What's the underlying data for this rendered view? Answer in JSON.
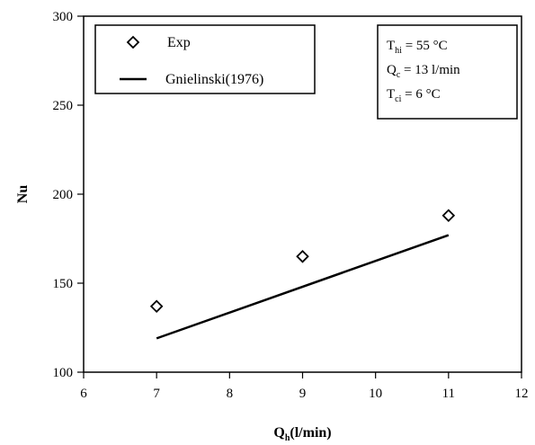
{
  "chart_data": {
    "type": "scatter",
    "xlabel": "Qh(l/min)",
    "xlabel_parts": {
      "main": "Q",
      "sub": "h",
      "rest": "(l/min)"
    },
    "ylabel": "Nu",
    "xlim": [
      6,
      12
    ],
    "ylim": [
      100,
      300
    ],
    "xticks": [
      "6",
      "7",
      "8",
      "9",
      "10",
      "11",
      "12"
    ],
    "yticks": [
      "100",
      "150",
      "200",
      "250",
      "300"
    ],
    "grid": false,
    "legend_position": "top-left",
    "series": [
      {
        "name": "Exp",
        "marker": "open-diamond",
        "color": "#000000",
        "x": [
          7,
          9,
          11
        ],
        "y": [
          137,
          165,
          188
        ]
      },
      {
        "name": "Gnielinski(1976)",
        "style": "line",
        "color": "#000000",
        "x": [
          7,
          11
        ],
        "y": [
          119,
          177
        ]
      }
    ],
    "conditions": [
      {
        "main": "T",
        "sub": "hi",
        "rest": " = 55 °C"
      },
      {
        "main": "Q",
        "sub": "c",
        "rest": " = 13 l/min"
      },
      {
        "main": "T",
        "sub": "ci",
        "rest": " = 6 °C"
      }
    ]
  }
}
